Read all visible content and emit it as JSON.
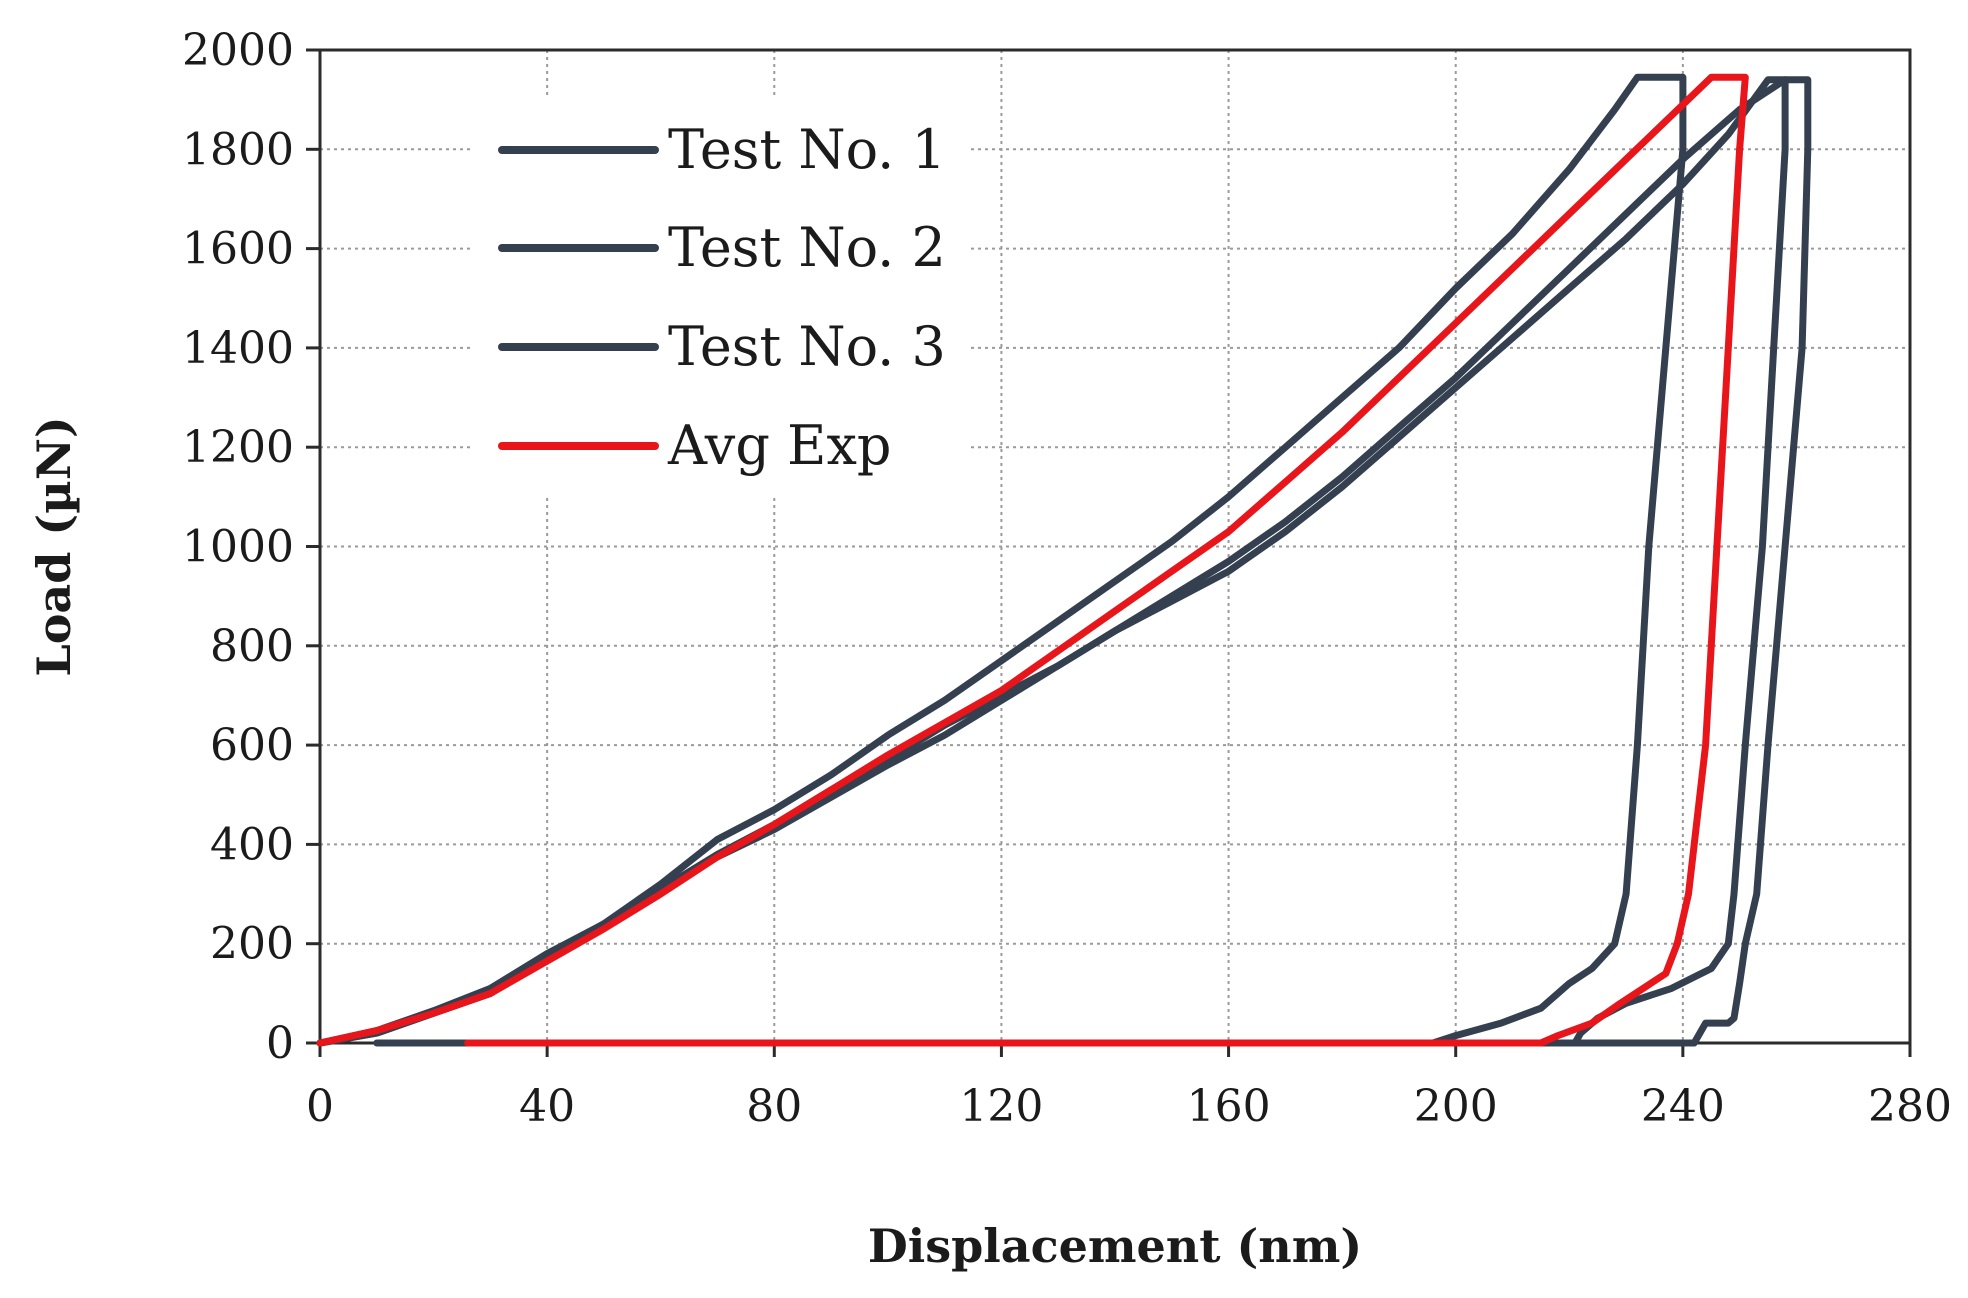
{
  "chart_data": {
    "type": "line",
    "title": "",
    "xlabel": "Displacement (nm)",
    "ylabel": "Load (µN)",
    "xlim": [
      0,
      280
    ],
    "ylim": [
      0,
      2000
    ],
    "xticks": [
      0,
      40,
      80,
      120,
      160,
      200,
      240,
      280
    ],
    "yticks": [
      0,
      200,
      400,
      600,
      800,
      1000,
      1200,
      1400,
      1600,
      1800,
      2000
    ],
    "grid": true,
    "legend_position": "top-left",
    "series": [
      {
        "name": "Test No. 1",
        "color": "#34404f",
        "points": [
          [
            0,
            0
          ],
          [
            10,
            20
          ],
          [
            20,
            60
          ],
          [
            30,
            100
          ],
          [
            40,
            175
          ],
          [
            50,
            240
          ],
          [
            60,
            320
          ],
          [
            70,
            410
          ],
          [
            80,
            470
          ],
          [
            90,
            540
          ],
          [
            100,
            620
          ],
          [
            110,
            690
          ],
          [
            120,
            770
          ],
          [
            130,
            850
          ],
          [
            140,
            930
          ],
          [
            150,
            1010
          ],
          [
            160,
            1100
          ],
          [
            170,
            1200
          ],
          [
            180,
            1300
          ],
          [
            190,
            1400
          ],
          [
            200,
            1520
          ],
          [
            210,
            1630
          ],
          [
            220,
            1760
          ],
          [
            228,
            1880
          ],
          [
            232,
            1945
          ],
          [
            240,
            1945
          ],
          [
            240,
            1800
          ],
          [
            237,
            1400
          ],
          [
            234,
            1000
          ],
          [
            232,
            600
          ],
          [
            230,
            300
          ],
          [
            228,
            200
          ],
          [
            224,
            150
          ],
          [
            220,
            120
          ],
          [
            215,
            70
          ],
          [
            208,
            40
          ],
          [
            200,
            15
          ],
          [
            196,
            0
          ],
          [
            12,
            0
          ]
        ]
      },
      {
        "name": "Test No. 2",
        "color": "#34404f",
        "points": [
          [
            0,
            0
          ],
          [
            10,
            20
          ],
          [
            20,
            60
          ],
          [
            30,
            100
          ],
          [
            40,
            175
          ],
          [
            50,
            240
          ],
          [
            60,
            310
          ],
          [
            70,
            380
          ],
          [
            80,
            440
          ],
          [
            90,
            510
          ],
          [
            100,
            570
          ],
          [
            110,
            640
          ],
          [
            120,
            700
          ],
          [
            130,
            760
          ],
          [
            140,
            830
          ],
          [
            150,
            890
          ],
          [
            160,
            950
          ],
          [
            170,
            1030
          ],
          [
            180,
            1120
          ],
          [
            190,
            1220
          ],
          [
            200,
            1320
          ],
          [
            210,
            1420
          ],
          [
            220,
            1520
          ],
          [
            230,
            1620
          ],
          [
            240,
            1730
          ],
          [
            248,
            1830
          ],
          [
            255,
            1940
          ],
          [
            258,
            1940
          ],
          [
            258,
            1800
          ],
          [
            256,
            1400
          ],
          [
            254,
            1000
          ],
          [
            251,
            600
          ],
          [
            249,
            300
          ],
          [
            248,
            200
          ],
          [
            245,
            150
          ],
          [
            238,
            110
          ],
          [
            230,
            80
          ],
          [
            225,
            50
          ],
          [
            222,
            20
          ],
          [
            221,
            0
          ],
          [
            25,
            0
          ]
        ]
      },
      {
        "name": "Test No. 3",
        "color": "#34404f",
        "points": [
          [
            0,
            0
          ],
          [
            10,
            25
          ],
          [
            20,
            65
          ],
          [
            30,
            110
          ],
          [
            40,
            180
          ],
          [
            50,
            240
          ],
          [
            60,
            310
          ],
          [
            70,
            375
          ],
          [
            80,
            430
          ],
          [
            90,
            495
          ],
          [
            100,
            560
          ],
          [
            110,
            620
          ],
          [
            120,
            690
          ],
          [
            130,
            760
          ],
          [
            140,
            830
          ],
          [
            150,
            900
          ],
          [
            160,
            970
          ],
          [
            170,
            1050
          ],
          [
            180,
            1140
          ],
          [
            190,
            1240
          ],
          [
            200,
            1340
          ],
          [
            210,
            1450
          ],
          [
            220,
            1560
          ],
          [
            230,
            1670
          ],
          [
            240,
            1780
          ],
          [
            250,
            1880
          ],
          [
            258,
            1940
          ],
          [
            262,
            1940
          ],
          [
            262,
            1800
          ],
          [
            261,
            1400
          ],
          [
            258,
            1000
          ],
          [
            255,
            600
          ],
          [
            253,
            300
          ],
          [
            251,
            200
          ],
          [
            250,
            120
          ],
          [
            249,
            50
          ],
          [
            248,
            40
          ],
          [
            244,
            40
          ],
          [
            242,
            0
          ],
          [
            10,
            0
          ]
        ]
      },
      {
        "name": "Avg Exp",
        "color": "#e8151b",
        "points": [
          [
            0,
            0
          ],
          [
            10,
            25
          ],
          [
            20,
            60
          ],
          [
            30,
            100
          ],
          [
            40,
            165
          ],
          [
            50,
            230
          ],
          [
            60,
            300
          ],
          [
            70,
            375
          ],
          [
            80,
            440
          ],
          [
            90,
            510
          ],
          [
            100,
            580
          ],
          [
            110,
            645
          ],
          [
            120,
            710
          ],
          [
            130,
            790
          ],
          [
            140,
            870
          ],
          [
            150,
            950
          ],
          [
            160,
            1030
          ],
          [
            170,
            1130
          ],
          [
            180,
            1230
          ],
          [
            190,
            1340
          ],
          [
            200,
            1450
          ],
          [
            210,
            1560
          ],
          [
            220,
            1670
          ],
          [
            230,
            1780
          ],
          [
            240,
            1890
          ],
          [
            245,
            1945
          ],
          [
            251,
            1945
          ],
          [
            250,
            1800
          ],
          [
            248,
            1400
          ],
          [
            246,
            1000
          ],
          [
            244,
            600
          ],
          [
            241,
            300
          ],
          [
            239,
            200
          ],
          [
            237,
            140
          ],
          [
            233,
            110
          ],
          [
            229,
            80
          ],
          [
            224,
            40
          ],
          [
            218,
            15
          ],
          [
            215,
            0
          ],
          [
            26,
            0
          ]
        ]
      }
    ]
  }
}
